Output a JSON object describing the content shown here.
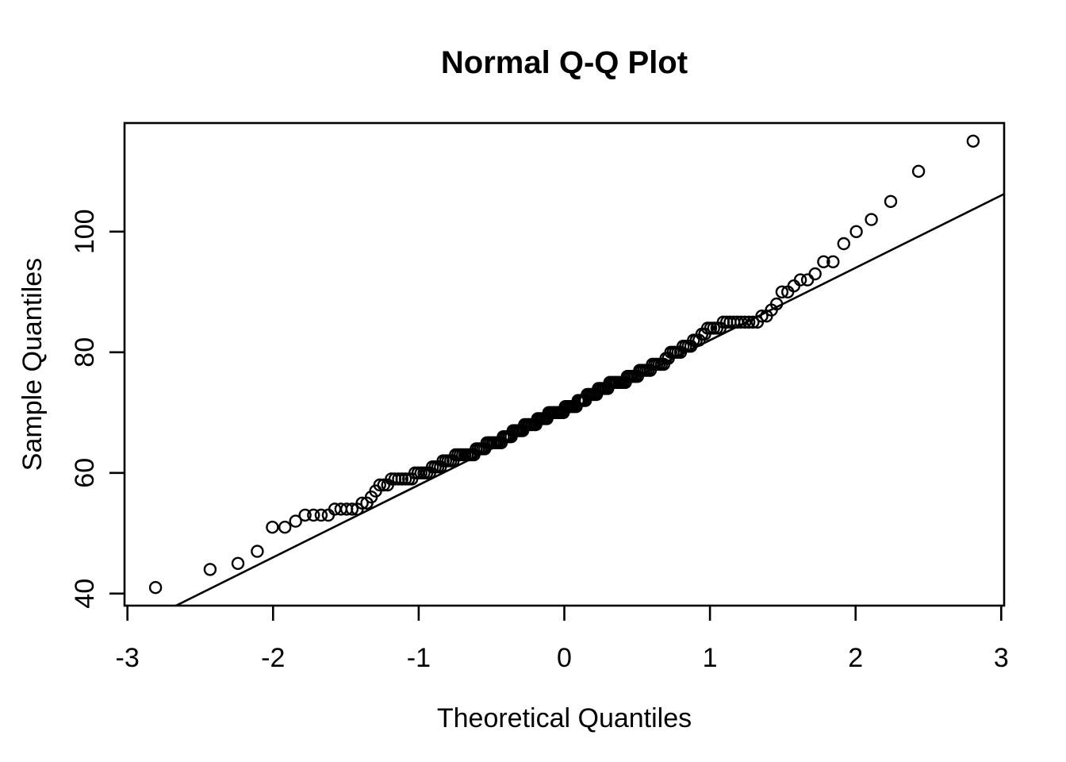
{
  "chart_data": {
    "type": "scatter",
    "title": "Normal Q-Q Plot",
    "xlabel": "Theoretical Quantiles",
    "ylabel": "Sample Quantiles",
    "xlim": [
      -3.02,
      3.02
    ],
    "ylim": [
      38,
      118
    ],
    "x_ticks": [
      -3,
      -2,
      -1,
      0,
      1,
      2,
      3
    ],
    "y_ticks": [
      40,
      60,
      80,
      100
    ],
    "grid": false,
    "legend": "none",
    "marker": "open-circle",
    "marker_color": "#000000",
    "line_color": "#000000",
    "background": "#ffffff",
    "n": 200,
    "quantile_rule": "x_i = qnorm((i - 0.5) / n), sample values sorted ascending",
    "reference_line": {
      "intercept": 70,
      "slope": 12
    },
    "sample_quantiles_sorted": [
      41,
      44,
      45,
      47,
      51,
      51,
      52,
      53,
      53,
      53,
      53,
      54,
      54,
      54,
      54,
      54,
      55,
      55,
      56,
      57,
      58,
      58,
      58,
      59,
      59,
      59,
      59,
      59,
      59,
      59,
      60,
      60,
      60,
      60,
      60,
      60,
      61,
      61,
      61,
      61,
      62,
      62,
      62,
      62,
      62,
      63,
      63,
      63,
      63,
      63,
      63,
      63,
      63,
      63,
      64,
      64,
      64,
      64,
      64,
      65,
      65,
      65,
      65,
      65,
      65,
      65,
      65,
      66,
      66,
      66,
      66,
      66,
      67,
      67,
      67,
      67,
      67,
      67,
      68,
      68,
      68,
      68,
      68,
      68,
      68,
      69,
      69,
      69,
      69,
      69,
      69,
      70,
      70,
      70,
      70,
      70,
      70,
      70,
      70,
      70,
      71,
      71,
      71,
      71,
      71,
      71,
      71,
      72,
      72,
      72,
      72,
      72,
      73,
      73,
      73,
      73,
      73,
      73,
      74,
      74,
      74,
      74,
      74,
      74,
      75,
      75,
      75,
      75,
      75,
      75,
      75,
      75,
      75,
      76,
      76,
      76,
      76,
      76,
      76,
      77,
      77,
      77,
      77,
      77,
      77,
      78,
      78,
      78,
      78,
      78,
      78,
      79,
      79,
      80,
      80,
      80,
      80,
      80,
      81,
      81,
      81,
      81,
      82,
      82,
      82,
      83,
      83,
      84,
      84,
      84,
      84,
      84,
      85,
      85,
      85,
      85,
      85,
      85,
      85,
      85,
      85,
      85,
      86,
      86,
      87,
      88,
      90,
      90,
      91,
      92,
      92,
      93,
      95,
      95,
      98,
      100,
      102,
      105,
      110,
      115
    ]
  }
}
